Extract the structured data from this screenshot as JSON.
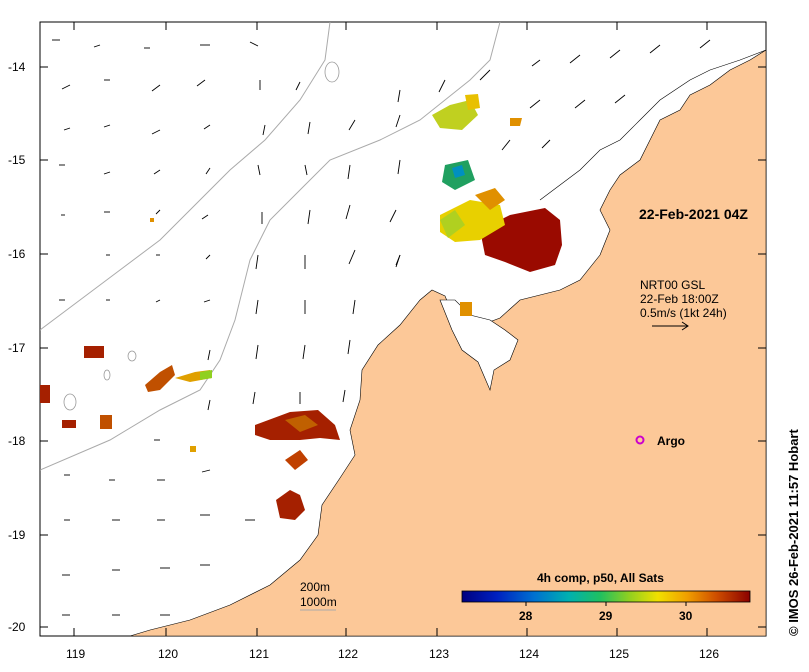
{
  "map": {
    "date_label": "22-Feb-2021 04Z",
    "current_source": "NRT00 GSL",
    "current_time": "22-Feb 18:00Z",
    "current_scale": "0.5m/s (1kt 24h)",
    "argo_label": "Argo",
    "credit": "© IMOS 26-Feb-2021 11:57 Hobart",
    "isobath_200": "200m",
    "isobath_1000": "1000m",
    "colorbar_title": "4h comp, p50, All Sats",
    "colorbar_ticks": [
      "28",
      "29",
      "30"
    ],
    "colorbar_range": [
      27.2,
      30.8
    ],
    "lon_ticks": [
      "119",
      "120",
      "121",
      "122",
      "123",
      "124",
      "125",
      "126"
    ],
    "lat_ticks": [
      "-14",
      "-15",
      "-16",
      "-17",
      "-18",
      "-19",
      "-20"
    ],
    "colors": {
      "land": "#fcc898",
      "sst_low": "#0a0a80",
      "sst_high": "#8b0000",
      "argo": "#cc00cc"
    }
  }
}
